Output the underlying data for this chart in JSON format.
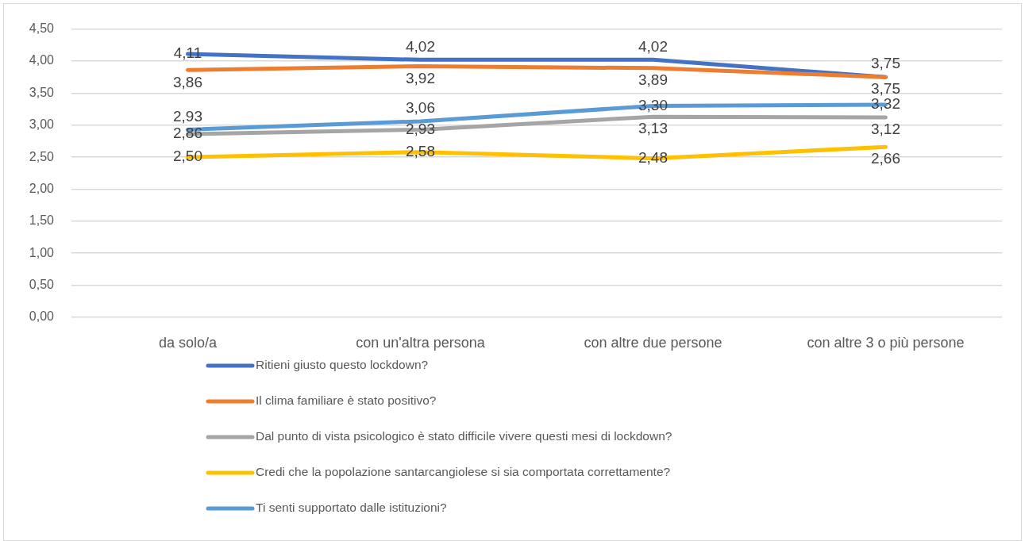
{
  "chart_data": {
    "type": "line",
    "categories": [
      "da solo/a",
      "con un'altra persona",
      "con altre due persone",
      "con altre 3 o più persone"
    ],
    "series": [
      {
        "name": "Ritieni giusto questo lockdown?",
        "color": "#4472c4",
        "values": [
          4.11,
          4.02,
          4.02,
          3.75
        ],
        "value_labels": [
          "4,11",
          "4,02",
          "4,02",
          "3,75"
        ]
      },
      {
        "name": "Il clima familiare è stato positivo?",
        "color": "#ed7d31",
        "values": [
          3.86,
          3.92,
          3.89,
          3.75
        ],
        "value_labels": [
          "3,86",
          "3,92",
          "3,89",
          "3,75"
        ]
      },
      {
        "name": "Dal punto di vista psicologico è stato difficile vivere questi mesi di lockdown?",
        "color": "#a5a5a5",
        "values": [
          2.86,
          2.93,
          3.13,
          3.12
        ],
        "value_labels": [
          "2,86",
          "2,93",
          "3,13",
          "3,12"
        ]
      },
      {
        "name": "Credi che la popolazione santarcangiolese si sia comportata correttamente?",
        "color": "#ffc000",
        "values": [
          2.5,
          2.58,
          2.48,
          2.66
        ],
        "value_labels": [
          "2,50",
          "2,58",
          "2,48",
          "2,66"
        ]
      },
      {
        "name": "Ti senti supportato dalle istituzioni?",
        "color": "#5b9bd5",
        "values": [
          2.93,
          3.06,
          3.3,
          3.32
        ],
        "value_labels": [
          "2,93",
          "3,06",
          "3,30",
          "3,32"
        ]
      }
    ],
    "ylim": [
      0,
      4.5
    ],
    "yticks": [
      {
        "value": 0,
        "label": "0,00"
      },
      {
        "value": 0.5,
        "label": "0,50"
      },
      {
        "value": 1,
        "label": "1,00"
      },
      {
        "value": 1.5,
        "label": "1,50"
      },
      {
        "value": 2,
        "label": "2,00"
      },
      {
        "value": 2.5,
        "label": "2,50"
      },
      {
        "value": 3,
        "label": "3,00"
      },
      {
        "value": 3.5,
        "label": "3,50"
      },
      {
        "value": 4,
        "label": "4,00"
      },
      {
        "value": 4.5,
        "label": "4,50"
      }
    ],
    "grid": "y",
    "legend": "bottom",
    "line_style": "solid"
  }
}
